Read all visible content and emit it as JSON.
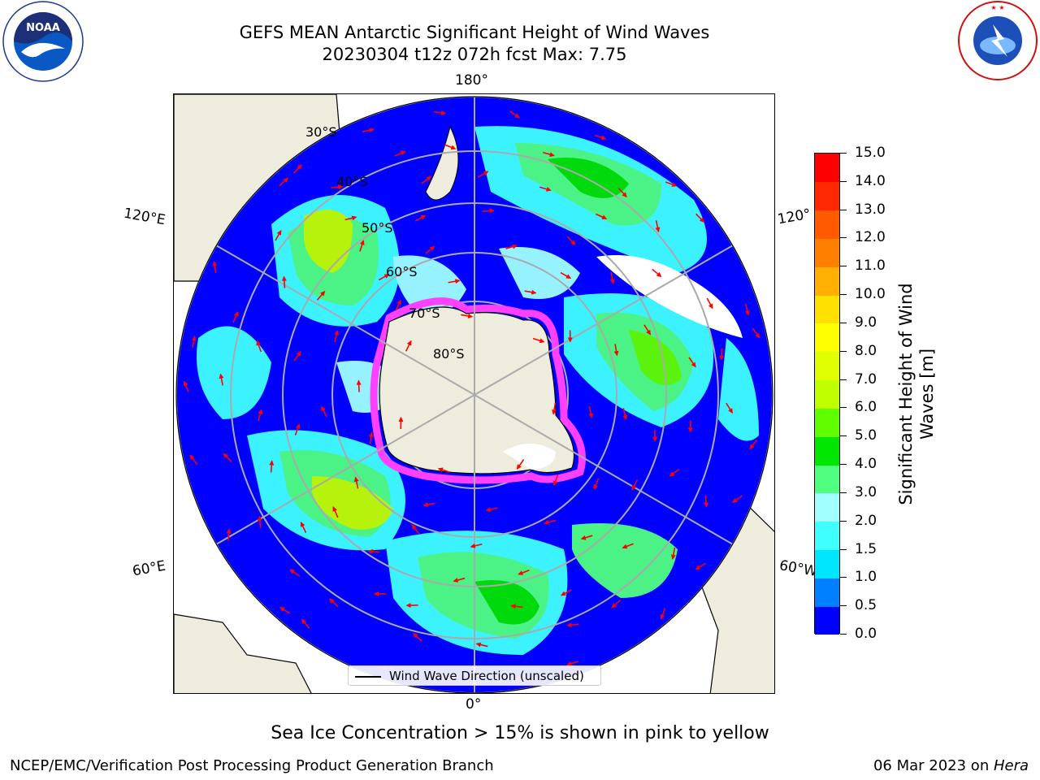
{
  "title": {
    "line1": "GEFS MEAN Antarctic Significant Height of Wind Waves",
    "line2": "20230304 t12z 072h fcst   Max: 7.75"
  },
  "map": {
    "longitude_labels": [
      "180°",
      "120°E",
      "120°",
      "60°E",
      "60°W",
      "0°"
    ],
    "latitude_labels": [
      "30°S",
      "40°S",
      "50°S",
      "60°S",
      "70°S",
      "80°S"
    ],
    "legend_label": "Wind Wave Direction (unscaled)",
    "arrow_color": "#ff0000",
    "land_color": "#eeecdc",
    "sea_ice_color": "#ff40ff"
  },
  "colorbar": {
    "title_line1": "Significant Height of Wind",
    "title_line2": "Waves [m]",
    "ticks": [
      "0.0",
      "0.5",
      "1.0",
      "1.5",
      "2.0",
      "3.0",
      "4.0",
      "5.0",
      "6.0",
      "7.0",
      "8.0",
      "9.0",
      "10.0",
      "11.0",
      "12.0",
      "13.0",
      "14.0",
      "15.0"
    ],
    "colors": [
      "#0000ff",
      "#0080ff",
      "#00e6ff",
      "#40ffff",
      "#a0ffff",
      "#50ff80",
      "#00e600",
      "#60ff00",
      "#c0ff00",
      "#e0ff00",
      "#ffff00",
      "#ffe000",
      "#ffb000",
      "#ff8000",
      "#ff5a00",
      "#ff2800",
      "#ff0000"
    ]
  },
  "note": "Sea Ice Concentration > 15% is shown in pink to yellow",
  "footer": {
    "left": "NCEP/EMC/Verification Post Processing Product Generation Branch",
    "right_date": "06 Mar 2023 on ",
    "right_machine": "Hera"
  },
  "chart_data": {
    "type": "heatmap",
    "title": "GEFS MEAN Antarctic Significant Height of Wind Waves",
    "subtitle": "20230304 t12z 072h fcst   Max: 7.75",
    "colorbar_label": "Significant Height of Wind Waves [m]",
    "range": [
      0,
      15
    ],
    "max_value": 7.75
  },
  "logos": {
    "noaa_text": "NOAA",
    "nws_text": "NATIONAL WEATHER SERVICE"
  }
}
